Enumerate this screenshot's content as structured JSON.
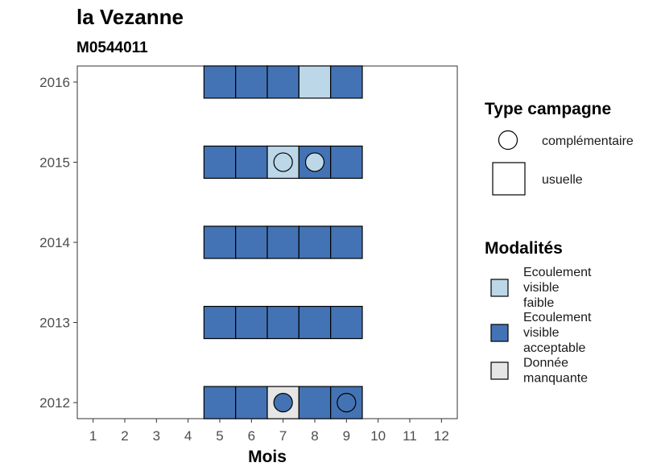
{
  "chart_data": {
    "type": "heatmap",
    "title": "la Vezanne",
    "subtitle": "M0544011",
    "xlabel": "Mois",
    "ylabel": "",
    "x_ticks": [
      "1",
      "2",
      "3",
      "4",
      "5",
      "6",
      "7",
      "8",
      "9",
      "10",
      "11",
      "12"
    ],
    "y_ticks": [
      "2012",
      "2013",
      "2014",
      "2015",
      "2016"
    ],
    "xlim": [
      0.5,
      12.5
    ],
    "ylim": [
      2011.8,
      2016.2
    ],
    "grid": false,
    "legend_position": "right",
    "colors": {
      "Ecoulement visible faible": "#bcd7e8",
      "Ecoulement visible acceptable": "#4373b4",
      "Donnée manquante": "#e6e6e6"
    },
    "cells": [
      {
        "year": 2016,
        "month": 5,
        "modalite": "Ecoulement visible acceptable",
        "campagne": "usuelle"
      },
      {
        "year": 2016,
        "month": 6,
        "modalite": "Ecoulement visible acceptable",
        "campagne": "usuelle"
      },
      {
        "year": 2016,
        "month": 7,
        "modalite": "Ecoulement visible acceptable",
        "campagne": "usuelle"
      },
      {
        "year": 2016,
        "month": 8,
        "modalite": "Ecoulement visible faible",
        "campagne": "usuelle"
      },
      {
        "year": 2016,
        "month": 9,
        "modalite": "Ecoulement visible acceptable",
        "campagne": "usuelle"
      },
      {
        "year": 2015,
        "month": 5,
        "modalite": "Ecoulement visible acceptable",
        "campagne": "usuelle"
      },
      {
        "year": 2015,
        "month": 6,
        "modalite": "Ecoulement visible acceptable",
        "campagne": "usuelle"
      },
      {
        "year": 2015,
        "month": 7,
        "modalite": "Ecoulement visible faible",
        "campagne": "usuelle"
      },
      {
        "year": 2015,
        "month": 7,
        "modalite": "Ecoulement visible faible",
        "campagne": "complémentaire"
      },
      {
        "year": 2015,
        "month": 8,
        "modalite": "Ecoulement visible acceptable",
        "campagne": "usuelle"
      },
      {
        "year": 2015,
        "month": 8,
        "modalite": "Ecoulement visible faible",
        "campagne": "complémentaire"
      },
      {
        "year": 2015,
        "month": 9,
        "modalite": "Ecoulement visible acceptable",
        "campagne": "usuelle"
      },
      {
        "year": 2014,
        "month": 5,
        "modalite": "Ecoulement visible acceptable",
        "campagne": "usuelle"
      },
      {
        "year": 2014,
        "month": 6,
        "modalite": "Ecoulement visible acceptable",
        "campagne": "usuelle"
      },
      {
        "year": 2014,
        "month": 7,
        "modalite": "Ecoulement visible acceptable",
        "campagne": "usuelle"
      },
      {
        "year": 2014,
        "month": 8,
        "modalite": "Ecoulement visible acceptable",
        "campagne": "usuelle"
      },
      {
        "year": 2014,
        "month": 9,
        "modalite": "Ecoulement visible acceptable",
        "campagne": "usuelle"
      },
      {
        "year": 2013,
        "month": 5,
        "modalite": "Ecoulement visible acceptable",
        "campagne": "usuelle"
      },
      {
        "year": 2013,
        "month": 6,
        "modalite": "Ecoulement visible acceptable",
        "campagne": "usuelle"
      },
      {
        "year": 2013,
        "month": 7,
        "modalite": "Ecoulement visible acceptable",
        "campagne": "usuelle"
      },
      {
        "year": 2013,
        "month": 8,
        "modalite": "Ecoulement visible acceptable",
        "campagne": "usuelle"
      },
      {
        "year": 2013,
        "month": 9,
        "modalite": "Ecoulement visible acceptable",
        "campagne": "usuelle"
      },
      {
        "year": 2012,
        "month": 5,
        "modalite": "Ecoulement visible acceptable",
        "campagne": "usuelle"
      },
      {
        "year": 2012,
        "month": 6,
        "modalite": "Ecoulement visible acceptable",
        "campagne": "usuelle"
      },
      {
        "year": 2012,
        "month": 7,
        "modalite": "Donnée manquante",
        "campagne": "usuelle"
      },
      {
        "year": 2012,
        "month": 7,
        "modalite": "Ecoulement visible acceptable",
        "campagne": "complémentaire"
      },
      {
        "year": 2012,
        "month": 8,
        "modalite": "Ecoulement visible acceptable",
        "campagne": "usuelle"
      },
      {
        "year": 2012,
        "month": 9,
        "modalite": "Ecoulement visible acceptable",
        "campagne": "usuelle"
      },
      {
        "year": 2012,
        "month": 9,
        "modalite": "Ecoulement visible acceptable",
        "campagne": "complémentaire"
      }
    ],
    "legends": {
      "campagne": {
        "title": "Type campagne",
        "items": [
          {
            "label": "complémentaire",
            "shape": "circle"
          },
          {
            "label": "usuelle",
            "shape": "square"
          }
        ]
      },
      "modalites": {
        "title": "Modalités",
        "items": [
          {
            "lines": [
              "Ecoulement",
              "visible",
              "faible"
            ],
            "key": "Ecoulement visible faible"
          },
          {
            "lines": [
              "Ecoulement",
              "visible",
              "acceptable"
            ],
            "key": "Ecoulement visible acceptable"
          },
          {
            "lines": [
              "Donnée",
              "manquante"
            ],
            "key": "Donnée manquante"
          }
        ]
      }
    }
  }
}
